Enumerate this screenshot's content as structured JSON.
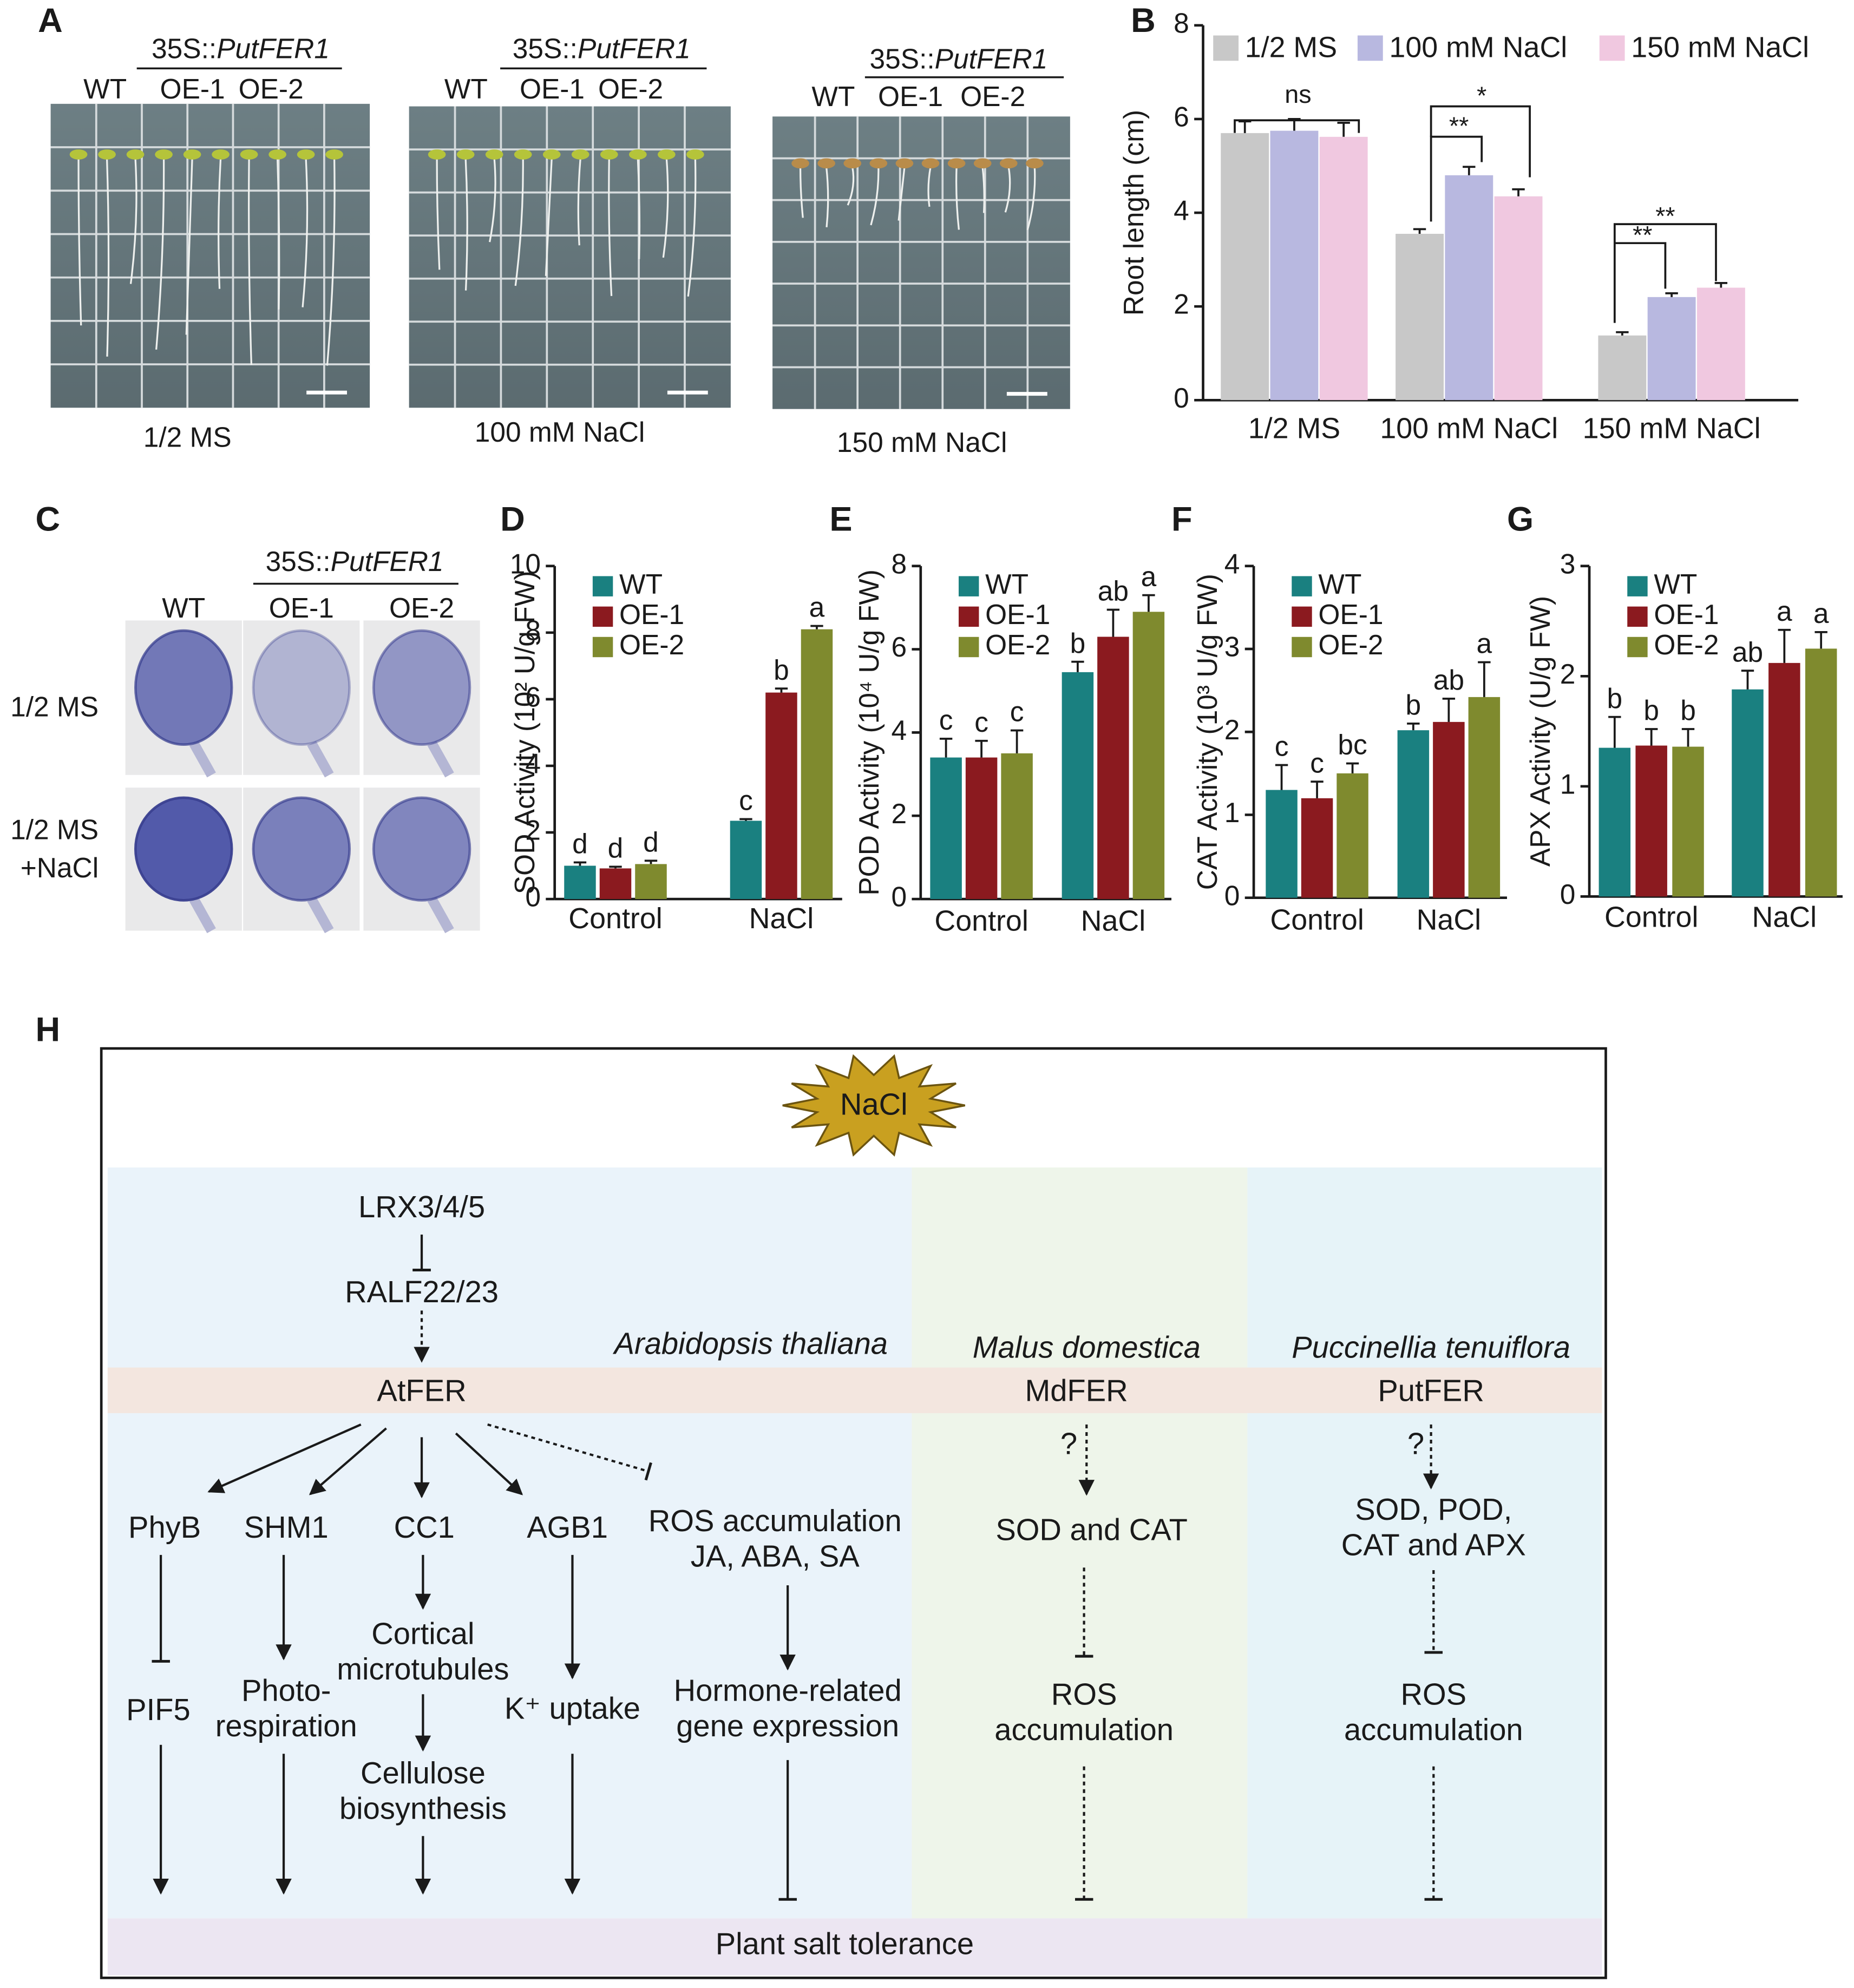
{
  "panel_a": {
    "label": "A",
    "construct": [
      "35S::",
      "PutFER1"
    ],
    "lines": [
      "WT",
      "OE-1",
      "OE-2"
    ],
    "conditions": [
      "1/2 MS",
      "100 mM NaCl",
      "150 mM NaCl"
    ]
  },
  "panel_c": {
    "label": "C",
    "construct": [
      "35S::",
      "PutFER1"
    ],
    "lines": [
      "WT",
      "OE-1",
      "OE-2"
    ],
    "rows": [
      [
        "1/2 MS"
      ],
      [
        "1/2 MS",
        "+NaCl"
      ]
    ]
  },
  "chart_data": [
    {
      "type": "bar",
      "panel": "B",
      "ylabel": "Root length (cm)",
      "categories": [
        "1/2 MS",
        "100 mM NaCl",
        "150 mM NaCl"
      ],
      "ylim": [
        0,
        8
      ],
      "yticks": [
        0,
        2,
        4,
        6,
        8
      ],
      "legend": "top",
      "series": [
        {
          "name": "1/2 MS",
          "color": "#c8c8c8",
          "values": [
            5.7,
            3.55,
            1.38
          ],
          "errors": [
            0.25,
            0.1,
            0.07
          ]
        },
        {
          "name": "100 mM NaCl",
          "color": "#b8b8e0",
          "values": [
            5.75,
            4.8,
            2.2
          ],
          "errors": [
            0.25,
            0.18,
            0.08
          ]
        },
        {
          "name": "150 mM NaCl",
          "color": "#f0c8e0",
          "values": [
            5.62,
            4.35,
            2.4
          ],
          "errors": [
            0.3,
            0.15,
            0.1
          ]
        }
      ],
      "annotations": [
        "ns",
        "**",
        "*",
        "**",
        "**"
      ]
    },
    {
      "type": "bar",
      "panel": "D",
      "ylabel": "SOD Activity (10² U/g FW)",
      "categories": [
        "Control",
        "NaCl"
      ],
      "ylim": [
        0,
        10
      ],
      "yticks": [
        0,
        2,
        4,
        6,
        8,
        10
      ],
      "legend": "upper left",
      "series": [
        {
          "name": "WT",
          "color": "#1a8080",
          "values": [
            1.0,
            2.35
          ],
          "errors": [
            0.1,
            0.05
          ],
          "letters": [
            "d",
            "c"
          ]
        },
        {
          "name": "OE-1",
          "color": "#8b1a1f",
          "values": [
            0.92,
            6.2
          ],
          "errors": [
            0.05,
            0.12
          ],
          "letters": [
            "d",
            "b"
          ]
        },
        {
          "name": "OE-2",
          "color": "#7f8a2e",
          "values": [
            1.05,
            8.1
          ],
          "errors": [
            0.1,
            0.1
          ],
          "letters": [
            "d",
            "a"
          ]
        }
      ]
    },
    {
      "type": "bar",
      "panel": "E",
      "ylabel": "POD Activity (10⁴ U/g FW)",
      "categories": [
        "Control",
        "NaCl"
      ],
      "ylim": [
        0,
        8
      ],
      "yticks": [
        0,
        2,
        4,
        6,
        8
      ],
      "legend": "upper left",
      "series": [
        {
          "name": "WT",
          "color": "#1a8080",
          "values": [
            3.4,
            5.45
          ],
          "errors": [
            0.45,
            0.25
          ],
          "letters": [
            "c",
            "b"
          ]
        },
        {
          "name": "OE-1",
          "color": "#8b1a1f",
          "values": [
            3.4,
            6.3
          ],
          "errors": [
            0.4,
            0.65
          ],
          "letters": [
            "c",
            "ab"
          ]
        },
        {
          "name": "OE-2",
          "color": "#7f8a2e",
          "values": [
            3.5,
            6.9
          ],
          "errors": [
            0.55,
            0.4
          ],
          "letters": [
            "c",
            "a"
          ]
        }
      ]
    },
    {
      "type": "bar",
      "panel": "F",
      "ylabel": "CAT Activity (10³ U/g FW)",
      "categories": [
        "Control",
        "NaCl"
      ],
      "ylim": [
        0,
        4
      ],
      "yticks": [
        0,
        1,
        2,
        3,
        4
      ],
      "legend": "upper left",
      "series": [
        {
          "name": "WT",
          "color": "#1a8080",
          "values": [
            1.3,
            2.02
          ],
          "errors": [
            0.3,
            0.08
          ],
          "letters": [
            "c",
            "b"
          ]
        },
        {
          "name": "OE-1",
          "color": "#8b1a1f",
          "values": [
            1.2,
            2.12
          ],
          "errors": [
            0.2,
            0.28
          ],
          "letters": [
            "c",
            "ab"
          ]
        },
        {
          "name": "OE-2",
          "color": "#7f8a2e",
          "values": [
            1.5,
            2.42
          ],
          "errors": [
            0.12,
            0.42
          ],
          "letters": [
            "bc",
            "a"
          ]
        }
      ]
    },
    {
      "type": "bar",
      "panel": "G",
      "ylabel": "APX Activity (U/g FW)",
      "categories": [
        "Control",
        "NaCl"
      ],
      "ylim": [
        0,
        3
      ],
      "yticks": [
        0,
        1,
        2,
        3
      ],
      "legend": "upper left",
      "series": [
        {
          "name": "WT",
          "color": "#1a8080",
          "values": [
            1.35,
            1.88
          ],
          "errors": [
            0.28,
            0.17
          ],
          "letters": [
            "b",
            "ab"
          ]
        },
        {
          "name": "OE-1",
          "color": "#8b1a1f",
          "values": [
            1.37,
            2.12
          ],
          "errors": [
            0.15,
            0.3
          ],
          "letters": [
            "b",
            "a"
          ]
        },
        {
          "name": "OE-2",
          "color": "#7f8a2e",
          "values": [
            1.36,
            2.25
          ],
          "errors": [
            0.16,
            0.15
          ],
          "letters": [
            "b",
            "a"
          ]
        }
      ]
    }
  ],
  "diagram": {
    "label": "H",
    "stimulus": "NaCl",
    "upstream": [
      "LRX3/4/5",
      "RALF22/23"
    ],
    "species": [
      "Arabidopsis thaliana",
      "Malus domestica",
      "Puccinellia tenuiflora"
    ],
    "receptors": [
      "AtFER",
      "MdFER",
      "PutFER"
    ],
    "unknown": "?",
    "nodes": [
      {
        "lines": [
          "PhyB"
        ]
      },
      {
        "lines": [
          "SHM1"
        ]
      },
      {
        "lines": [
          "CC1"
        ]
      },
      {
        "lines": [
          "AGB1"
        ]
      },
      {
        "lines": [
          "ROS accumulation",
          "JA, ABA, SA"
        ]
      },
      {
        "lines": [
          "SOD and CAT"
        ]
      },
      {
        "lines": [
          "SOD, POD,",
          "CAT and APX"
        ]
      },
      {
        "lines": [
          "PIF5"
        ]
      },
      {
        "lines": [
          "Photo-",
          "respiration"
        ]
      },
      {
        "lines": [
          "Cortical",
          "microtubules"
        ]
      },
      {
        "lines": [
          "Cellulose",
          "biosynthesis"
        ]
      },
      {
        "lines": [
          "K⁺ uptake"
        ]
      },
      {
        "lines": [
          "Hormone-related",
          "gene expression"
        ]
      },
      {
        "lines": [
          "ROS",
          "accumulation"
        ]
      },
      {
        "lines": [
          "ROS",
          "accumulation"
        ]
      }
    ],
    "outcome": "Plant salt tolerance"
  }
}
